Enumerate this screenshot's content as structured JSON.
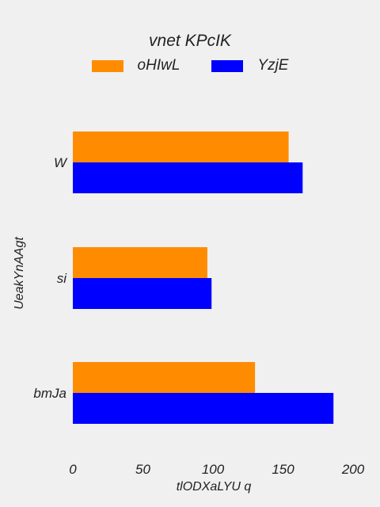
{
  "chart_data": {
    "type": "bar",
    "orientation": "horizontal",
    "title": "vnet KPcIK",
    "xlabel": "tlODXaLYU q",
    "ylabel": "UeakYnAAgt",
    "categories": [
      "W",
      "si",
      "bmJa"
    ],
    "series": [
      {
        "name": "oHIwL",
        "values": [
          154,
          96,
          130
        ],
        "color": "#ff8c00"
      },
      {
        "name": "YzjE",
        "values": [
          164,
          99,
          186
        ],
        "color": "#0000ff"
      }
    ],
    "xlim": [
      0,
      200
    ],
    "xticks": [
      "0",
      "50",
      "100",
      "150",
      "200"
    ],
    "grid": false,
    "legend_position": "top-center"
  }
}
